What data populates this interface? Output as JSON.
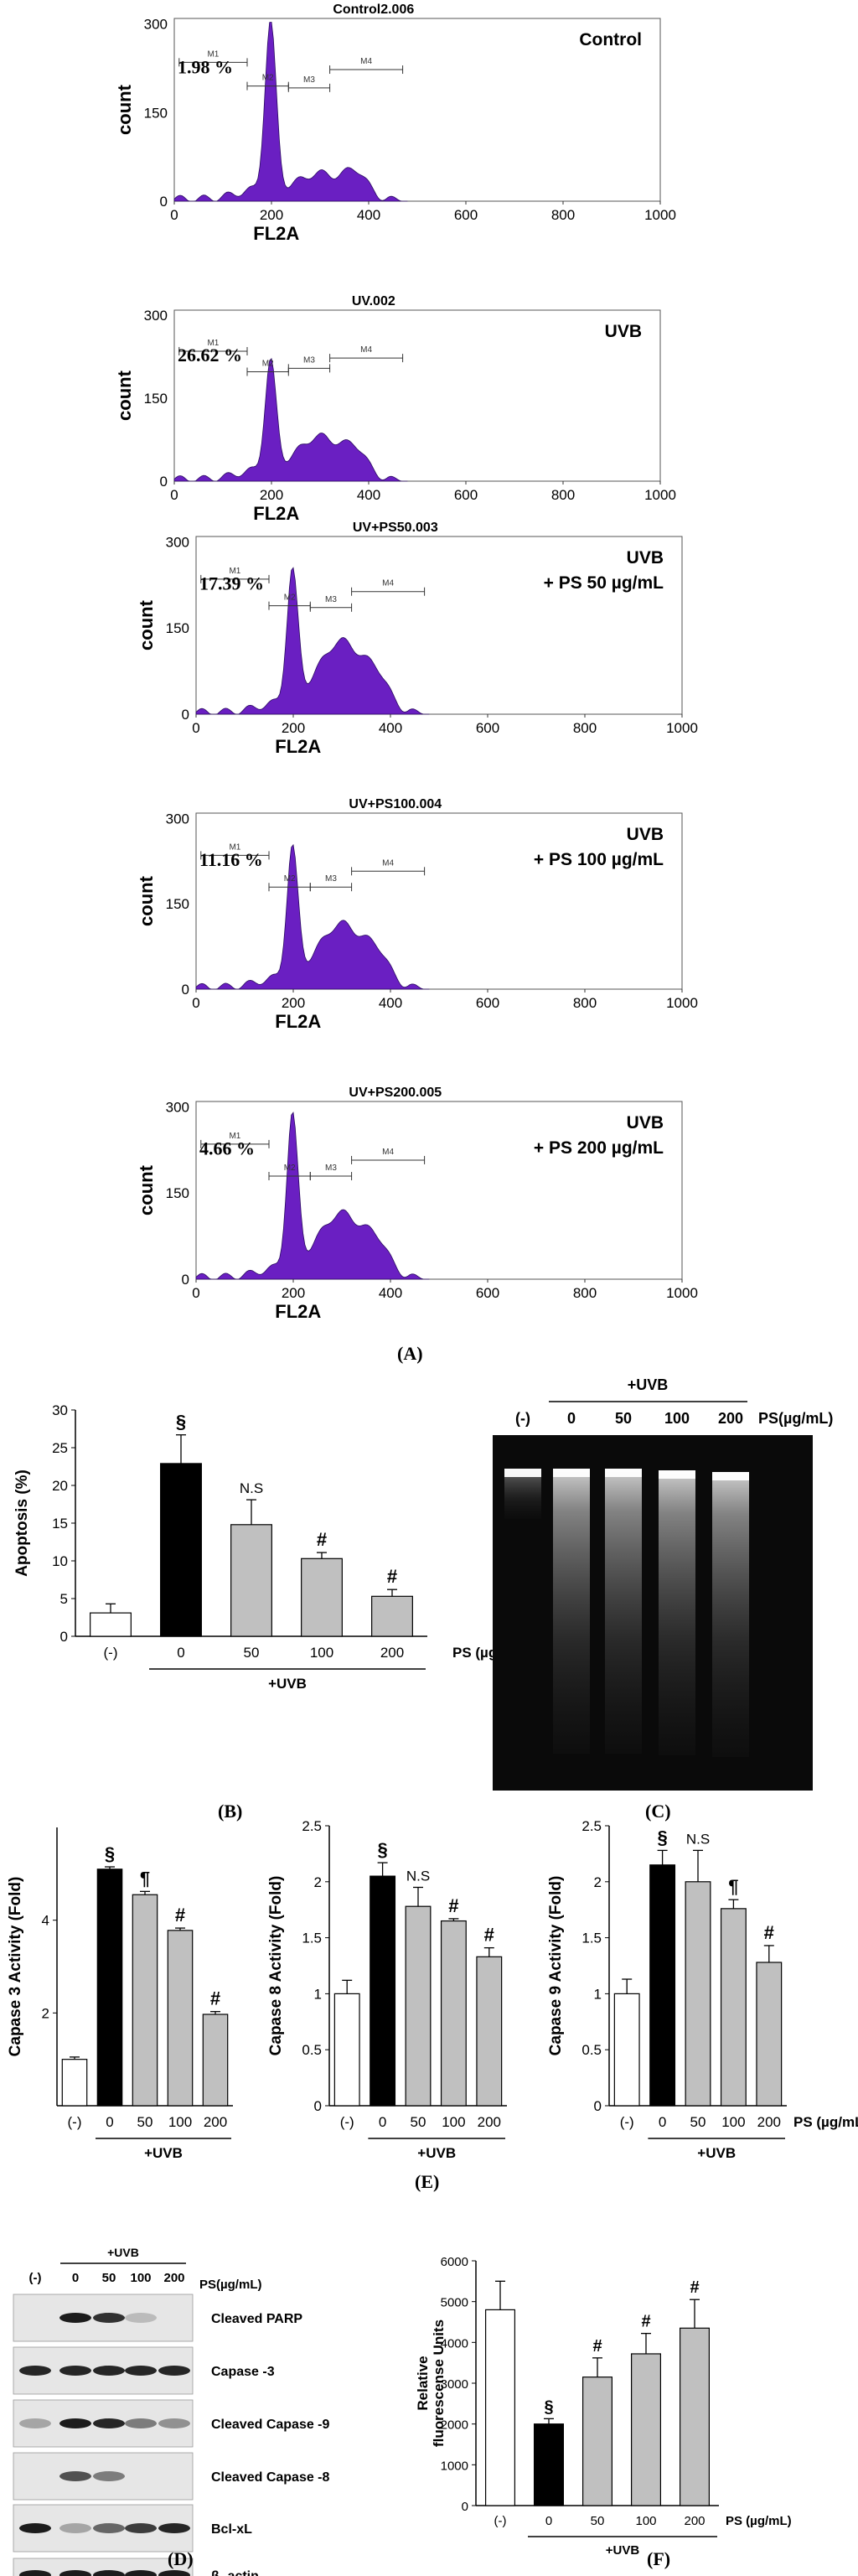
{
  "panel_labels": {
    "A": "(A)",
    "B": "(B)",
    "C": "(C)",
    "D": "(D)",
    "E": "(E)",
    "F": "(F)"
  },
  "colors": {
    "histogram_fill": "#6a1fc2",
    "black_bar": "#000000",
    "gray_bar": "#c0c0c0",
    "white_bar": "#ffffff"
  },
  "flow": [
    {
      "file": "Control2.006",
      "line1": "Control",
      "line2": "",
      "percent": "1.98 %"
    },
    {
      "file": "UV.002",
      "line1": "UVB",
      "line2": "",
      "percent": "26.62 %"
    },
    {
      "file": "UV+PS50.003",
      "line1": "UVB",
      "line2": "+ PS 50 µg/mL",
      "percent": "17.39 %"
    },
    {
      "file": "UV+PS100.004",
      "line1": "UVB",
      "line2": "+ PS 100 µg/mL",
      "percent": "11.16 %"
    },
    {
      "file": "UV+PS200.005",
      "line1": "UVB",
      "line2": "+ PS 200 µg/mL",
      "percent": "4.66 %"
    }
  ],
  "flow_axes": {
    "xlabel": "FL2A",
    "ylabel": "count",
    "xticks": [
      "0",
      "200",
      "400",
      "600",
      "800",
      "1000"
    ],
    "yticks": [
      "0",
      "150",
      "300"
    ],
    "gates": [
      "M1",
      "M2",
      "M3",
      "M4"
    ]
  },
  "gel": {
    "uvb": "+UVB",
    "lanes": [
      "(-)",
      "0",
      "50",
      "100",
      "200"
    ],
    "unit": "PS(µg/mL)"
  },
  "blot": {
    "uvb": "+UVB",
    "lanes": [
      "(-)",
      "0",
      "50",
      "100",
      "200"
    ],
    "unit": "PS(µg/mL)",
    "rows": [
      "Cleaved PARP",
      "Capase -3",
      "Cleaved Capase -9",
      "Cleaved Capase -8",
      "Bcl-xL",
      "β -actin"
    ]
  },
  "chart_data": [
    {
      "id": "B",
      "type": "bar",
      "ylabel": "Apoptosis (%)",
      "xunit": "PS (µg/mL)",
      "group": "+UVB",
      "categories": [
        "(-)",
        "0",
        "50",
        "100",
        "200"
      ],
      "values": [
        3.1,
        22.9,
        14.8,
        10.3,
        5.3
      ],
      "errors": [
        1.2,
        3.8,
        3.3,
        0.8,
        0.9
      ],
      "marks": [
        "",
        "§",
        "N.S",
        "#",
        "#"
      ],
      "ylim": [
        0,
        30
      ],
      "yticks": [
        0,
        5,
        10,
        15,
        20,
        25,
        30
      ]
    },
    {
      "id": "E1",
      "type": "bar",
      "ylabel": "Capase  3 Activity (Fold)",
      "xunit": "",
      "group": "+UVB",
      "categories": [
        "(-)",
        "0",
        "50",
        "100",
        "200"
      ],
      "values": [
        1.0,
        5.1,
        4.55,
        3.78,
        1.97
      ],
      "errors": [
        0.05,
        0.05,
        0.07,
        0.05,
        0.06
      ],
      "marks": [
        "",
        "§",
        "¶",
        "#",
        "#"
      ],
      "ylim": [
        0,
        6
      ],
      "yticks": [
        2,
        4
      ]
    },
    {
      "id": "E2",
      "type": "bar",
      "ylabel": "Capase  8 Activity (Fold)",
      "xunit": "",
      "group": "+UVB",
      "categories": [
        "(-)",
        "0",
        "50",
        "100",
        "200"
      ],
      "values": [
        1.0,
        2.05,
        1.78,
        1.65,
        1.33
      ],
      "errors": [
        0.12,
        0.12,
        0.17,
        0.02,
        0.08
      ],
      "marks": [
        "",
        "§",
        "N.S",
        "#",
        "#"
      ],
      "ylim": [
        0,
        2.5
      ],
      "yticks": [
        0,
        0.5,
        1,
        1.5,
        2,
        2.5
      ]
    },
    {
      "id": "E3",
      "type": "bar",
      "ylabel": "Capase  9 Activity (Fold)",
      "xunit": "PS (µg/mL)",
      "group": "+UVB",
      "categories": [
        "(-)",
        "0",
        "50",
        "100",
        "200"
      ],
      "values": [
        1.0,
        2.15,
        2.0,
        1.76,
        1.28
      ],
      "errors": [
        0.13,
        0.13,
        0.28,
        0.08,
        0.15
      ],
      "marks": [
        "",
        "§",
        "N.S",
        "¶",
        "#"
      ],
      "ylim": [
        0,
        2.5
      ],
      "yticks": [
        0,
        0.5,
        1,
        1.5,
        2,
        2.5
      ]
    },
    {
      "id": "F",
      "type": "bar",
      "ylabel": "Relative fluorescense Units",
      "xunit": "PS (µg/mL)",
      "group": "+UVB",
      "categories": [
        "(-)",
        "0",
        "50",
        "100",
        "200"
      ],
      "values": [
        4800,
        2000,
        3150,
        3720,
        4350
      ],
      "errors": [
        700,
        130,
        470,
        500,
        700
      ],
      "marks": [
        "",
        "§",
        "#",
        "#",
        "#"
      ],
      "ylim": [
        0,
        6000
      ],
      "yticks": [
        0,
        1000,
        2000,
        3000,
        4000,
        5000,
        6000
      ]
    }
  ]
}
